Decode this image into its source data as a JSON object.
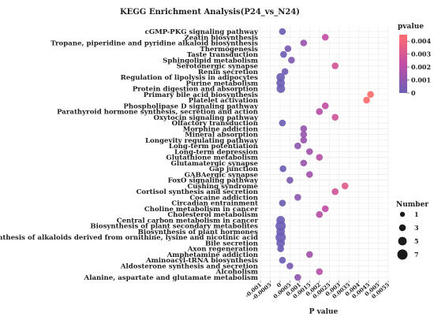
{
  "chart_data": {
    "type": "scatter",
    "title": "KEGG Enrichment Analysis(P24_vs_N24)",
    "xlabel": "P value",
    "xlim": [
      -0.001,
      0.0055
    ],
    "x_ticks": [
      "-0.001",
      "-0.0005",
      "0",
      "0.0005",
      "0.001",
      "0.0015",
      "0.002",
      "0.0025",
      "0.003",
      "0.0035",
      "0.004",
      "0.0045",
      "0.005",
      "0.0055"
    ],
    "grid": true,
    "color_legend": {
      "title": "pvalue",
      "ticks": [
        "0.004",
        "0.003",
        "0.002",
        "0.001",
        "0"
      ],
      "min": 0,
      "max": 0.0045,
      "low_color": "#6a5fb5",
      "mid_color": "#c14ea6",
      "high_color": "#ff6e6e",
      "placement": "top-right"
    },
    "size_legend": {
      "title": "Number",
      "labels": [
        "1",
        "3",
        "5",
        "7"
      ],
      "placement": "bottom-right"
    },
    "categories": [
      "cGMP-PKG signaling pathway",
      "Zeatin biosynthesis",
      "Tropane, piperidine and pyridine alkaloid biosynthesis",
      "Thermogenesis",
      "Taste transduction",
      "Sphingolipid metabolism",
      "Serotonergic synapse",
      "Renin secretion",
      "Regulation of lipolysis in adipocytes",
      "Purine metabolism",
      "Protein digestion and absorption",
      "Primary bile acid biosynthesis",
      "Platelet activation",
      "Phospholipase D signaling pathway",
      "Parathyroid hormone synthesis, secretion and action",
      "Oxytocin signaling pathway",
      "Olfactory transduction",
      "Morphine addiction",
      "Mineral absorption",
      "Longevity regulating pathway",
      "Long-term potentiation",
      "Long-term depression",
      "Glutathione metabolism",
      "Glutamatergic synapse",
      "Gap junction",
      "GABAergic synapse",
      "FoxO signaling pathway",
      "Cushing syndrome",
      "Cortisol synthesis and secretion",
      "Cocaine addiction",
      "Circadian entrainment",
      "Choline metabolism in cancer",
      "Cholesterol metabolism",
      "Central carbon metabolism in cancer",
      "Biosynthesis of plant secondary metabolites",
      "Biosynthesis of plant hormones",
      "Biosynthesis of alkaloids derived from ornithine, lysine and nicotinic acid",
      "Bile secretion",
      "Axon regeneration",
      "Amphetamine addiction",
      "Aminoacyl-tRNA biosynthesis",
      "Aldosterone synthesis and secretion",
      "Alcoholism",
      "Alanine, aspartate and glutamate metabolism"
    ],
    "x": [
      0.00012,
      0.0023,
      0.0012,
      0.0004,
      0.00018,
      0.00058,
      0.0028,
      0.00025,
      3e-05,
      3e-05,
      4e-05,
      0.0046,
      0.0044,
      0.0023,
      0.002,
      0.0028,
      0.00012,
      0.0012,
      0.0012,
      0.0012,
      0.0009,
      0.0015,
      0.002,
      0.0012,
      0.00015,
      0.0015,
      0.0005,
      0.0033,
      0.0028,
      0.0009,
      0.00012,
      0.0023,
      0.002,
      3e-05,
      3e-05,
      3e-05,
      3e-05,
      3e-05,
      3e-05,
      0.0015,
      0.00012,
      0.0005,
      0.002,
      0.0009
    ],
    "count": [
      3,
      3,
      3,
      3,
      3,
      3,
      3,
      3,
      5,
      5,
      5,
      3,
      3,
      3,
      3,
      3,
      3,
      3,
      3,
      3,
      3,
      3,
      3,
      3,
      3,
      3,
      3,
      3,
      3,
      3,
      3,
      3,
      3,
      5,
      7,
      5,
      7,
      5,
      3,
      3,
      3,
      3,
      3,
      3
    ]
  }
}
